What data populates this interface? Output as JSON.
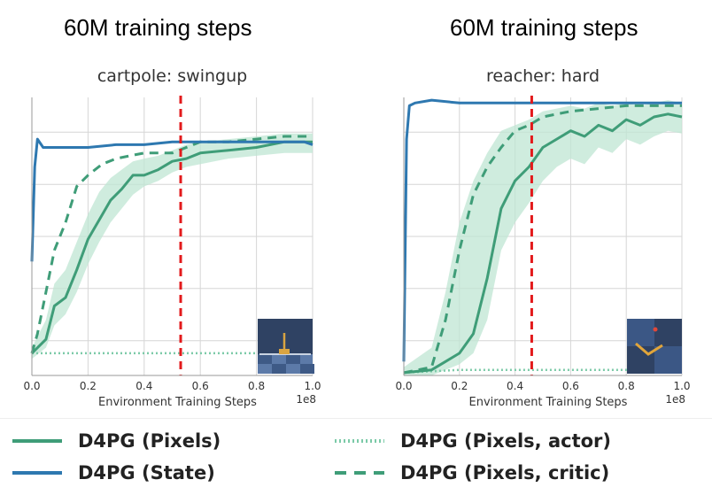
{
  "headings": [
    "60M training steps",
    "60M training steps"
  ],
  "colors": {
    "pixels": "#3f9d78",
    "state": "#2e78b0",
    "actor": "#7ccaa8",
    "critic": "#3f9d78",
    "band": "#bfe5d3",
    "cutoff": "#e31a1c",
    "plot_bg": "#ffffff",
    "grid": "#d6d6d6"
  },
  "legend": [
    {
      "label": "D4PG (Pixels)",
      "style": "solid",
      "color": "#3f9d78"
    },
    {
      "label": "D4PG (Pixels, actor)",
      "style": "dotted",
      "color": "#7ccaa8"
    },
    {
      "label": "D4PG (State)",
      "style": "solid",
      "color": "#2e78b0"
    },
    {
      "label": "D4PG (Pixels, critic)",
      "style": "dashed",
      "color": "#3f9d78"
    }
  ],
  "chart_data": [
    {
      "type": "line",
      "title": "cartpole: swingup",
      "xlabel": "Environment Training Steps",
      "x_multiplier": "1e8",
      "xlim": [
        0,
        1.0
      ],
      "ylim": [
        0,
        1.0
      ],
      "xticks": [
        0.0,
        0.2,
        0.4,
        0.6,
        0.8,
        1.0
      ],
      "xtick_labels": [
        "0.0",
        "0.2",
        "0.4",
        "0.6",
        "0.8",
        "1.0"
      ],
      "yticks": [
        0.125,
        0.313,
        0.5,
        0.687,
        0.875
      ],
      "grid": true,
      "cutoff_x": 0.53,
      "thumbnail": "cartpole-scene",
      "series": [
        {
          "name": "D4PG (State)",
          "style": "solid",
          "color": "#2e78b0",
          "x": [
            0.0,
            0.01,
            0.02,
            0.04,
            0.1,
            0.2,
            0.3,
            0.4,
            0.5,
            0.6,
            0.7,
            0.8,
            0.9,
            0.97,
            1.0
          ],
          "y": [
            0.41,
            0.75,
            0.85,
            0.82,
            0.82,
            0.82,
            0.83,
            0.83,
            0.84,
            0.84,
            0.84,
            0.84,
            0.84,
            0.84,
            0.83
          ]
        },
        {
          "name": "D4PG (Pixels)",
          "style": "solid",
          "color": "#3f9d78",
          "x": [
            0.0,
            0.05,
            0.08,
            0.12,
            0.16,
            0.2,
            0.24,
            0.28,
            0.32,
            0.36,
            0.4,
            0.45,
            0.5,
            0.55,
            0.6,
            0.7,
            0.8,
            0.9,
            1.0
          ],
          "y": [
            0.08,
            0.13,
            0.25,
            0.28,
            0.38,
            0.49,
            0.56,
            0.63,
            0.67,
            0.72,
            0.72,
            0.74,
            0.77,
            0.78,
            0.8,
            0.81,
            0.82,
            0.84,
            0.84
          ],
          "band_low": [
            0.06,
            0.1,
            0.18,
            0.22,
            0.3,
            0.4,
            0.48,
            0.55,
            0.6,
            0.65,
            0.68,
            0.7,
            0.73,
            0.75,
            0.76,
            0.78,
            0.79,
            0.8,
            0.8
          ],
          "band_high": [
            0.1,
            0.2,
            0.33,
            0.38,
            0.48,
            0.58,
            0.66,
            0.71,
            0.74,
            0.77,
            0.78,
            0.79,
            0.81,
            0.83,
            0.84,
            0.85,
            0.86,
            0.87,
            0.87
          ]
        },
        {
          "name": "D4PG (Pixels, critic)",
          "style": "dashed",
          "color": "#3f9d78",
          "x": [
            0.0,
            0.02,
            0.05,
            0.08,
            0.12,
            0.16,
            0.2,
            0.25,
            0.3,
            0.35,
            0.4,
            0.5,
            0.6,
            0.7,
            0.8,
            0.9,
            1.0
          ],
          "y": [
            0.08,
            0.15,
            0.3,
            0.45,
            0.55,
            0.68,
            0.72,
            0.76,
            0.78,
            0.79,
            0.8,
            0.8,
            0.84,
            0.84,
            0.85,
            0.86,
            0.86
          ]
        },
        {
          "name": "D4PG (Pixels, actor)",
          "style": "dotted",
          "color": "#7ccaa8",
          "x": [
            0.0,
            0.2,
            0.4,
            0.6,
            0.8,
            1.0
          ],
          "y": [
            0.08,
            0.08,
            0.08,
            0.08,
            0.08,
            0.08
          ]
        }
      ]
    },
    {
      "type": "line",
      "title": "reacher: hard",
      "xlabel": "Environment Training Steps",
      "x_multiplier": "1e8",
      "xlim": [
        0,
        1.0
      ],
      "ylim": [
        0,
        1.0
      ],
      "xticks": [
        0.0,
        0.2,
        0.4,
        0.6,
        0.8,
        1.0
      ],
      "xtick_labels": [
        "0.0",
        "0.2",
        "0.4",
        "0.6",
        "0.8",
        "1.0"
      ],
      "yticks": [
        0.125,
        0.313,
        0.5,
        0.687,
        0.875
      ],
      "grid": true,
      "cutoff_x": 0.46,
      "thumbnail": "reacher-scene",
      "series": [
        {
          "name": "D4PG (State)",
          "style": "solid",
          "color": "#2e78b0",
          "x": [
            0.0,
            0.01,
            0.02,
            0.04,
            0.1,
            0.2,
            0.4,
            0.6,
            0.8,
            1.0
          ],
          "y": [
            0.05,
            0.85,
            0.97,
            0.98,
            0.99,
            0.98,
            0.98,
            0.98,
            0.98,
            0.98
          ]
        },
        {
          "name": "D4PG (Pixels)",
          "style": "solid",
          "color": "#3f9d78",
          "x": [
            0.0,
            0.1,
            0.15,
            0.2,
            0.25,
            0.3,
            0.35,
            0.4,
            0.45,
            0.5,
            0.55,
            0.6,
            0.65,
            0.7,
            0.75,
            0.8,
            0.85,
            0.9,
            0.95,
            1.0
          ],
          "y": [
            0.01,
            0.02,
            0.05,
            0.08,
            0.15,
            0.35,
            0.6,
            0.7,
            0.75,
            0.82,
            0.85,
            0.88,
            0.86,
            0.9,
            0.88,
            0.92,
            0.9,
            0.93,
            0.94,
            0.93
          ],
          "band_low": [
            0.0,
            0.0,
            0.02,
            0.04,
            0.08,
            0.2,
            0.45,
            0.55,
            0.62,
            0.7,
            0.75,
            0.78,
            0.76,
            0.82,
            0.8,
            0.85,
            0.83,
            0.86,
            0.88,
            0.87
          ],
          "band_high": [
            0.03,
            0.1,
            0.3,
            0.55,
            0.7,
            0.8,
            0.88,
            0.9,
            0.92,
            0.95,
            0.96,
            0.97,
            0.96,
            0.98,
            0.97,
            0.98,
            0.97,
            0.98,
            0.99,
            0.98
          ]
        },
        {
          "name": "D4PG (Pixels, critic)",
          "style": "dashed",
          "color": "#3f9d78",
          "x": [
            0.0,
            0.1,
            0.15,
            0.2,
            0.25,
            0.3,
            0.35,
            0.4,
            0.45,
            0.5,
            0.6,
            0.7,
            0.8,
            0.9,
            1.0
          ],
          "y": [
            0.01,
            0.03,
            0.2,
            0.45,
            0.65,
            0.75,
            0.82,
            0.88,
            0.9,
            0.93,
            0.95,
            0.96,
            0.97,
            0.97,
            0.97
          ]
        },
        {
          "name": "D4PG (Pixels, actor)",
          "style": "dotted",
          "color": "#7ccaa8",
          "x": [
            0.0,
            0.2,
            0.4,
            0.6,
            0.8,
            1.0
          ],
          "y": [
            0.01,
            0.02,
            0.02,
            0.02,
            0.02,
            0.02
          ]
        }
      ]
    }
  ]
}
